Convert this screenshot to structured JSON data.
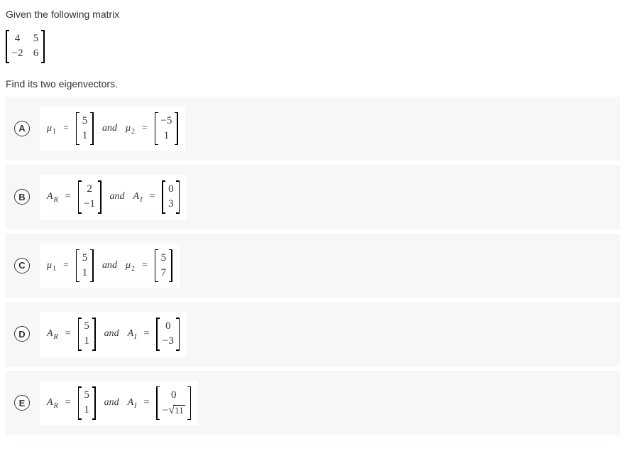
{
  "prompt_intro": "Given the following matrix",
  "prompt_question": "Find its two eigenvectors.",
  "matrix": {
    "r1c1": "4",
    "r1c2": "5",
    "r2c1": "−2",
    "r2c2": "6"
  },
  "options": {
    "A": {
      "letter": "A",
      "v1_sym": "μ",
      "v1_sub": "1",
      "v1_top": "5",
      "v1_bot": "1",
      "v2_sym": "μ",
      "v2_sub": "2",
      "v2_top": "−5",
      "v2_bot": "1",
      "v2_label_prefix": "",
      "sqrt_arg": ""
    },
    "B": {
      "letter": "B",
      "v1_sym": "A",
      "v1_sub": "R",
      "v1_top": "2",
      "v1_bot": "−1",
      "v2_sym": "A",
      "v2_sub": "I",
      "v2_top": "0",
      "v2_bot": "3",
      "v2_label_prefix": "",
      "sqrt_arg": ""
    },
    "C": {
      "letter": "C",
      "v1_sym": "μ",
      "v1_sub": "1",
      "v1_top": "5",
      "v1_bot": "1",
      "v2_sym": "μ",
      "v2_sub": "2",
      "v2_top": "5",
      "v2_bot": "7",
      "v2_label_prefix": "",
      "sqrt_arg": ""
    },
    "D": {
      "letter": "D",
      "v1_sym": "A",
      "v1_sub": "R",
      "v1_top": "5",
      "v1_bot": "1",
      "v2_sym": "A",
      "v2_sub": "I",
      "v2_top": "0",
      "v2_bot": "−3",
      "v2_label_prefix": "",
      "sqrt_arg": ""
    },
    "E": {
      "letter": "E",
      "v1_sym": "A",
      "v1_sub": "R",
      "v1_top": "5",
      "v1_bot": "1",
      "v2_sym": "A",
      "v2_sub": "I",
      "v2_top": "0",
      "v2_bot": "",
      "v2_label_prefix": "−",
      "sqrt_arg": "11"
    }
  },
  "and_word": "and",
  "eq_sym": "="
}
